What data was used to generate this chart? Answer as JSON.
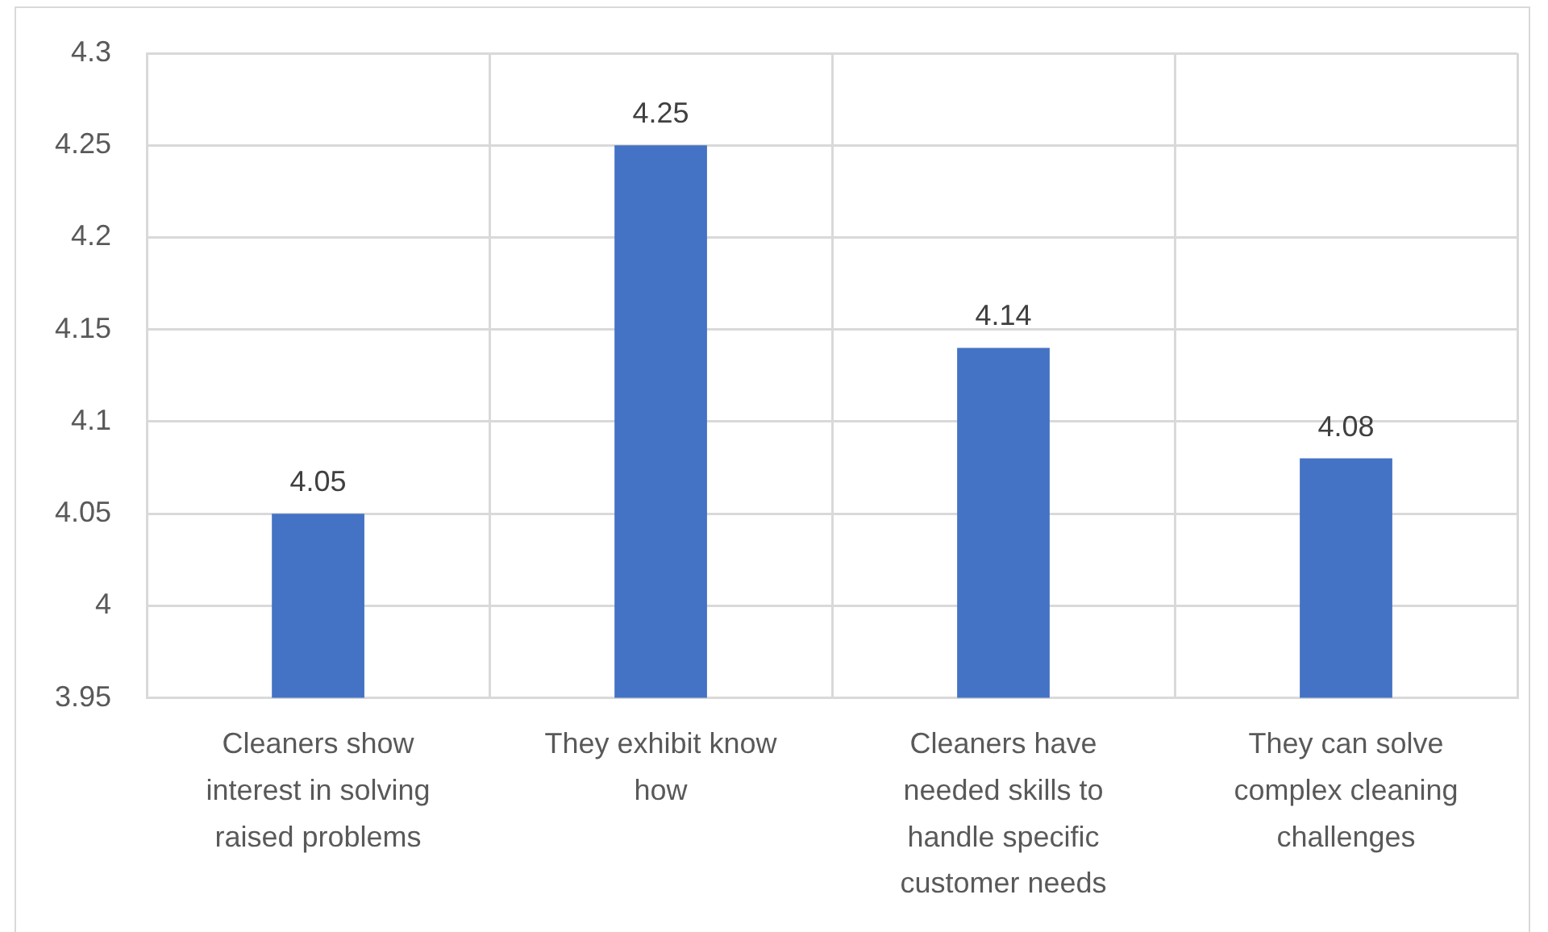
{
  "chart_data": {
    "type": "bar",
    "categories": [
      "Cleaners show interest in solving raised problems",
      "They exhibit know how",
      "Cleaners have needed skills to handle specific customer needs",
      "They can solve complex cleaning challenges"
    ],
    "values": [
      4.05,
      4.25,
      4.14,
      4.08
    ],
    "color": "#4472c4",
    "ylim": [
      3.95,
      4.3
    ],
    "yticks": [
      3.95,
      4,
      4.05,
      4.1,
      4.15,
      4.2,
      4.25,
      4.3
    ],
    "grid": true,
    "legend": false,
    "data_labels": true
  }
}
